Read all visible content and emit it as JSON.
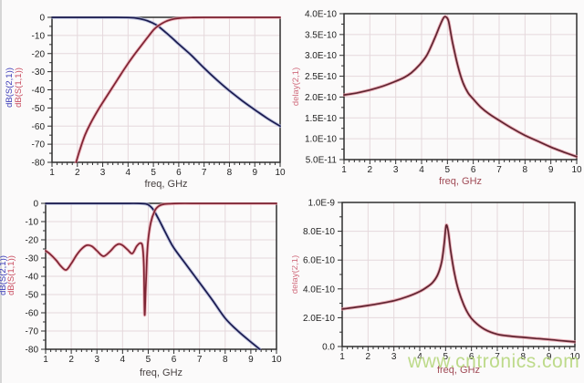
{
  "page": {
    "background": "#fbfafa",
    "watermark": {
      "text": "www.cntronics.com",
      "color": "#b7d77e"
    }
  },
  "colors": {
    "blue_trace": "#1a1a4e",
    "blue_halo": "#a9b0d6",
    "red_trace": "#7d2433",
    "red_halo": "#eba3ad",
    "delay_trace": "#5e2430",
    "delay_halo": "#e79aa6",
    "grid": "#e5d8dc",
    "axis": "#2e2e2e",
    "tick_text": "#1f1f1f",
    "ylabel_blue": "#3a3ab8",
    "ylabel_red": "#c84a5e",
    "ylabel_delay": "#d06b7c",
    "xlabel_dark": "#474040",
    "xlabel_red": "#a04a55"
  },
  "chart_data": [
    {
      "id": "s-parameters-chart-1",
      "type": "line",
      "y_axis_labels": [
        {
          "text": "dB(S(2,1))",
          "color": "#3a3ab8"
        },
        {
          "text": "dB(S(1,1))",
          "color": "#c84a5e"
        }
      ],
      "xlabel": "freq, GHz",
      "xlabel_color": "#474040",
      "xlim": [
        1,
        10
      ],
      "ylim": [
        -80,
        0
      ],
      "x_ticks": {
        "labels": [
          "1",
          "2",
          "3",
          "4",
          "5",
          "6",
          "7",
          "8",
          "9",
          "10"
        ],
        "values": [
          1,
          2,
          3,
          4,
          5,
          6,
          7,
          8,
          9,
          10
        ]
      },
      "y_ticks": {
        "labels": [
          "0",
          "-10",
          "-20",
          "-30",
          "-40",
          "-50",
          "-60",
          "-70",
          "-80"
        ],
        "values": [
          0,
          -10,
          -20,
          -30,
          -40,
          -50,
          -60,
          -70,
          -80
        ]
      },
      "series": [
        {
          "name": "dB(S(2,1))",
          "color": "#1a1a4e",
          "halo": "#a9b0d6",
          "points": [
            [
              1,
              0
            ],
            [
              1.5,
              0
            ],
            [
              2,
              0
            ],
            [
              2.5,
              0
            ],
            [
              3,
              0
            ],
            [
              3.5,
              0
            ],
            [
              4,
              -0.1
            ],
            [
              4.3,
              -0.4
            ],
            [
              4.6,
              -1.2
            ],
            [
              4.8,
              -2.1
            ],
            [
              5,
              -3.3
            ],
            [
              5.2,
              -5
            ],
            [
              5.5,
              -8.5
            ],
            [
              5.8,
              -12.2
            ],
            [
              6,
              -14.8
            ],
            [
              6.5,
              -21
            ],
            [
              7,
              -28
            ],
            [
              7.5,
              -34.5
            ],
            [
              8,
              -40.5
            ],
            [
              8.5,
              -46
            ],
            [
              9,
              -51
            ],
            [
              9.5,
              -55.8
            ],
            [
              10,
              -60
            ]
          ]
        },
        {
          "name": "dB(S(1,1))",
          "color": "#7d2433",
          "halo": "#eba3ad",
          "points": [
            [
              1.95,
              -80
            ],
            [
              2.1,
              -73
            ],
            [
              2.3,
              -65
            ],
            [
              2.5,
              -59
            ],
            [
              2.8,
              -51.5
            ],
            [
              3,
              -47
            ],
            [
              3.3,
              -40.5
            ],
            [
              3.6,
              -34
            ],
            [
              3.9,
              -27.5
            ],
            [
              4.2,
              -21.5
            ],
            [
              4.5,
              -16
            ],
            [
              4.8,
              -10.5
            ],
            [
              5,
              -7
            ],
            [
              5.2,
              -4.6
            ],
            [
              5.5,
              -2.2
            ],
            [
              5.8,
              -0.9
            ],
            [
              6.1,
              -0.35
            ],
            [
              6.5,
              -0.1
            ],
            [
              7,
              0
            ],
            [
              8,
              0
            ],
            [
              9,
              0
            ],
            [
              10,
              0
            ]
          ]
        }
      ]
    },
    {
      "id": "group-delay-chart-1",
      "type": "line",
      "y_axis_labels": [
        {
          "text": "delay(2,1)",
          "color": "#d06b7c"
        }
      ],
      "xlabel": "freq, GHz",
      "xlabel_color": "#a04a55",
      "xlim": [
        1,
        10
      ],
      "ylim": [
        5e-11,
        4e-10
      ],
      "x_ticks": {
        "labels": [
          "1",
          "2",
          "3",
          "4",
          "5",
          "6",
          "7",
          "8",
          "9",
          "10"
        ],
        "values": [
          1,
          2,
          3,
          4,
          5,
          6,
          7,
          8,
          9,
          10
        ]
      },
      "y_ticks": {
        "labels": [
          "4.0E-10",
          "3.5E-10",
          "3.0E-10",
          "2.5E-10",
          "2.0E-10",
          "1.5E-10",
          "1.0E-10",
          "5.0E-11"
        ],
        "values": [
          4e-10,
          3.5e-10,
          3e-10,
          2.5e-10,
          2e-10,
          1.5e-10,
          1e-10,
          5e-11
        ]
      },
      "series": [
        {
          "name": "delay(2,1)",
          "color": "#5e2430",
          "halo": "#e79aa6",
          "points": [
            [
              1,
              2.05e-10
            ],
            [
              1.5,
              2.1e-10
            ],
            [
              2,
              2.17e-10
            ],
            [
              2.5,
              2.26e-10
            ],
            [
              3,
              2.38e-10
            ],
            [
              3.3,
              2.46e-10
            ],
            [
              3.6,
              2.58e-10
            ],
            [
              3.9,
              2.76e-10
            ],
            [
              4.2,
              3e-10
            ],
            [
              4.5,
              3.4e-10
            ],
            [
              4.7,
              3.7e-10
            ],
            [
              4.85,
              3.9e-10
            ],
            [
              4.95,
              3.92e-10
            ],
            [
              5.05,
              3.8e-10
            ],
            [
              5.2,
              3.3e-10
            ],
            [
              5.4,
              2.75e-10
            ],
            [
              5.6,
              2.35e-10
            ],
            [
              5.8,
              2.1e-10
            ],
            [
              6,
              1.95e-10
            ],
            [
              6.3,
              1.75e-10
            ],
            [
              6.6,
              1.6e-10
            ],
            [
              7,
              1.44e-10
            ],
            [
              7.5,
              1.25e-10
            ],
            [
              8,
              1.08e-10
            ],
            [
              8.5,
              9.4e-11
            ],
            [
              9,
              8e-11
            ],
            [
              9.5,
              6.8e-11
            ],
            [
              10,
              5.7e-11
            ]
          ]
        }
      ]
    },
    {
      "id": "s-parameters-chart-2",
      "type": "line",
      "y_axis_labels": [
        {
          "text": "dB(S(2,1))",
          "color": "#3a3ab8"
        },
        {
          "text": "dB(S(1,1))",
          "color": "#c84a5e"
        }
      ],
      "xlabel": "freq, GHz",
      "xlabel_color": "#474040",
      "xlim": [
        1,
        10
      ],
      "ylim": [
        -80,
        0
      ],
      "x_ticks": {
        "labels": [
          "1",
          "2",
          "3",
          "4",
          "5",
          "6",
          "7",
          "8",
          "9",
          "10"
        ],
        "values": [
          1,
          2,
          3,
          4,
          5,
          6,
          7,
          8,
          9,
          10
        ]
      },
      "y_ticks": {
        "labels": [
          "0",
          "-10",
          "-20",
          "-30",
          "-40",
          "-50",
          "-60",
          "-70",
          "-80"
        ],
        "values": [
          0,
          -10,
          -20,
          -30,
          -40,
          -50,
          -60,
          -70,
          -80
        ]
      },
      "series": [
        {
          "name": "dB(S(2,1))",
          "color": "#1a1a4e",
          "halo": "#a9b0d6",
          "points": [
            [
              1,
              0
            ],
            [
              2,
              0
            ],
            [
              3,
              0
            ],
            [
              4,
              0
            ],
            [
              4.6,
              0
            ],
            [
              4.9,
              -0.3
            ],
            [
              5.05,
              -1.2
            ],
            [
              5.2,
              -3.5
            ],
            [
              5.4,
              -8.5
            ],
            [
              5.6,
              -14
            ],
            [
              5.8,
              -19.5
            ],
            [
              6,
              -24.5
            ],
            [
              6.5,
              -34
            ],
            [
              7,
              -43.5
            ],
            [
              7.5,
              -53
            ],
            [
              8,
              -63
            ],
            [
              8.5,
              -70
            ],
            [
              9,
              -76
            ],
            [
              9.35,
              -80
            ]
          ]
        },
        {
          "name": "dB(S(1,1))",
          "color": "#7d2433",
          "halo": "#eba3ad",
          "points": [
            [
              1,
              -26
            ],
            [
              1.15,
              -27.5
            ],
            [
              1.4,
              -31
            ],
            [
              1.6,
              -34.5
            ],
            [
              1.8,
              -36.5
            ],
            [
              2,
              -33
            ],
            [
              2.2,
              -28.5
            ],
            [
              2.4,
              -25
            ],
            [
              2.6,
              -23
            ],
            [
              2.8,
              -23.5
            ],
            [
              3,
              -26
            ],
            [
              3.25,
              -29
            ],
            [
              3.5,
              -26.5
            ],
            [
              3.7,
              -23.5
            ],
            [
              3.85,
              -22.3
            ],
            [
              4,
              -23
            ],
            [
              4.2,
              -25.5
            ],
            [
              4.38,
              -27.5
            ],
            [
              4.55,
              -23.5
            ],
            [
              4.7,
              -21.8
            ],
            [
              4.78,
              -24
            ],
            [
              4.83,
              -35
            ],
            [
              4.86,
              -61
            ],
            [
              4.9,
              -48
            ],
            [
              4.95,
              -30
            ],
            [
              5.0,
              -20
            ],
            [
              5.1,
              -10.5
            ],
            [
              5.25,
              -4.2
            ],
            [
              5.4,
              -1.6
            ],
            [
              5.6,
              -0.5
            ],
            [
              5.9,
              -0.15
            ],
            [
              6.2,
              0
            ],
            [
              7,
              0
            ],
            [
              8,
              0
            ],
            [
              9,
              0
            ],
            [
              10,
              0
            ]
          ]
        }
      ]
    },
    {
      "id": "group-delay-chart-2",
      "type": "line",
      "y_axis_labels": [
        {
          "text": "delay(2,1)",
          "color": "#d06b7c"
        }
      ],
      "xlabel": "freq, GHz",
      "xlabel_color": "#a04a55",
      "xlim": [
        1,
        10
      ],
      "ylim": [
        0,
        1e-09
      ],
      "x_ticks": {
        "labels": [
          "1",
          "2",
          "3",
          "4",
          "5",
          "6",
          "7",
          "8",
          "9",
          "10"
        ],
        "values": [
          1,
          2,
          3,
          4,
          5,
          6,
          7,
          8,
          9,
          10
        ]
      },
      "y_ticks": {
        "labels": [
          "1.0E-9",
          "8.0E-10",
          "6.0E-10",
          "4.0E-10",
          "2.0E-10",
          "0.0"
        ],
        "values": [
          1e-09,
          8e-10,
          6e-10,
          4e-10,
          2e-10,
          0
        ]
      },
      "series": [
        {
          "name": "delay(2,1)",
          "color": "#5e2430",
          "halo": "#e79aa6",
          "points": [
            [
              1,
              2.6e-10
            ],
            [
              1.5,
              2.72e-10
            ],
            [
              2,
              2.85e-10
            ],
            [
              2.5,
              3e-10
            ],
            [
              3,
              3.18e-10
            ],
            [
              3.5,
              3.45e-10
            ],
            [
              4,
              3.82e-10
            ],
            [
              4.3,
              4.15e-10
            ],
            [
              4.5,
              4.45e-10
            ],
            [
              4.7,
              5e-10
            ],
            [
              4.85,
              5.9e-10
            ],
            [
              4.95,
              7.2e-10
            ],
            [
              5.02,
              8.4e-10
            ],
            [
              5.1,
              8e-10
            ],
            [
              5.2,
              6.6e-10
            ],
            [
              5.35,
              5e-10
            ],
            [
              5.5,
              3.9e-10
            ],
            [
              5.7,
              2.9e-10
            ],
            [
              5.9,
              2.2e-10
            ],
            [
              6.1,
              1.75e-10
            ],
            [
              6.5,
              1.2e-10
            ],
            [
              7,
              8.5e-11
            ],
            [
              7.5,
              7.2e-11
            ],
            [
              8,
              6.4e-11
            ],
            [
              8.5,
              5.6e-11
            ],
            [
              9,
              4.9e-11
            ],
            [
              9.5,
              4e-11
            ],
            [
              10,
              3.2e-11
            ]
          ]
        }
      ]
    }
  ]
}
